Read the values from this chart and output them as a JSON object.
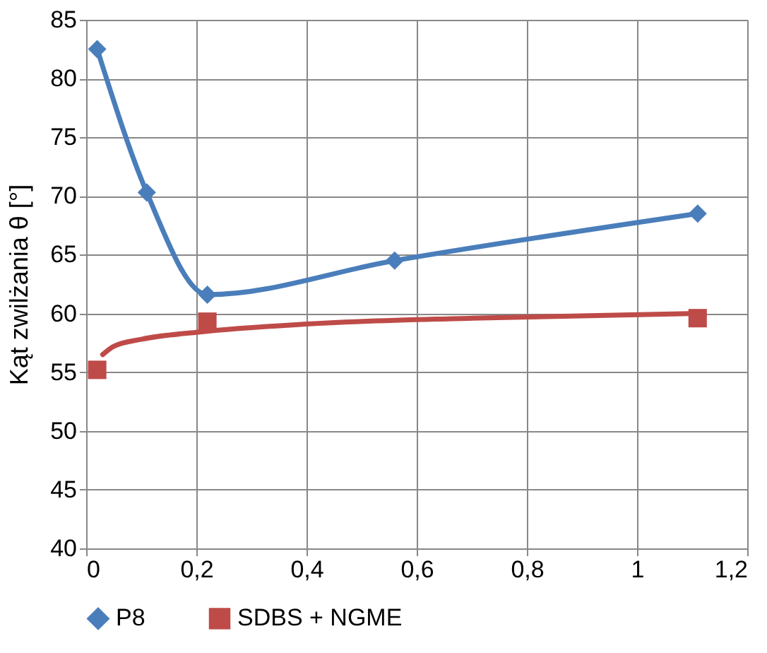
{
  "chart_data": {
    "type": "line",
    "ylabel": "Kąt  zwilżania θ [°]",
    "xlim": [
      0,
      1.2
    ],
    "xticks": [
      0,
      {
        "value": 0.2,
        "label": "0,2"
      },
      {
        "value": 0.4,
        "label": "0,4"
      },
      {
        "value": 0.6,
        "label": "0,6"
      },
      {
        "value": 0.8,
        "label": "0,8"
      },
      1,
      {
        "value": 1.2,
        "label": "1,2"
      }
    ],
    "ylim": [
      40,
      85
    ],
    "yticks": [
      40,
      45,
      50,
      55,
      60,
      65,
      70,
      75,
      80,
      85
    ],
    "grid": true,
    "legend": "bottom",
    "series": [
      {
        "name": "P8",
        "color": "#4a7ebb",
        "marker": "diamond",
        "x": [
          0.02,
          0.11,
          0.22,
          0.56,
          1.11
        ],
        "values": [
          82.5,
          70.3,
          61.6,
          64.5,
          68.5
        ]
      },
      {
        "name": "SDBS + NGME",
        "color": "#be4b48",
        "type": "scatter",
        "marker": "square",
        "x": [
          0.02,
          0.22,
          1.11
        ],
        "values": [
          55.2,
          59.3,
          59.6
        ]
      },
      {
        "color": "#be4b48",
        "type": "line",
        "marker": "none",
        "x": [
          0.03,
          0.05,
          0.1,
          0.2,
          0.4,
          0.7,
          1.11
        ],
        "values": [
          56.5,
          57.2,
          57.8,
          58.4,
          59.1,
          59.6,
          60.0
        ]
      }
    ]
  }
}
